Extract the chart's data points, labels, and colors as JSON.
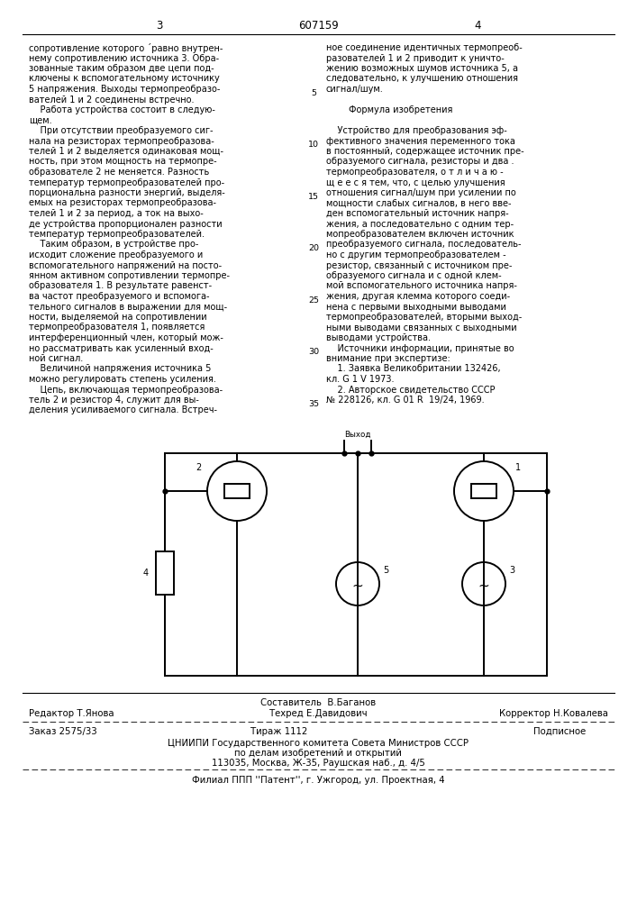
{
  "page_numbers_left": "3",
  "page_numbers_center": "607159",
  "page_numbers_right": "4",
  "left_col_text": [
    "сопротивление которого ´равно внутрен-",
    "нему сопротивлению источника 3. Обра-",
    "зованные таким образом две цепи под-",
    "ключены к вспомогательному источнику",
    "5 напряжения. Выходы термопреобразо-",
    "вателей 1 и 2 соединены встречно.",
    "    Работа устройства состоит в следую-",
    "щем.",
    "    При отсутствии преобразуемого сиг-",
    "нала на резисторах термопреобразова-",
    "телей 1 и 2 выделяется одинаковая мощ-",
    "ность, при этом мощность на термопре-",
    "образователе 2 не меняется. Разность",
    "температур термопреобразователей про-",
    "порциональна разности энергий, выделя-",
    "емых на резисторах термопреобразова-",
    "телей 1 и 2 за период, а ток на выхо-",
    "де устройства пропорционален разности",
    "температур термопреобразователей.",
    "    Таким образом, в устройстве про-",
    "исходит сложение преобразуемого и",
    "вспомогательного напряжений на посто-",
    "янном активном сопротивлении термопре-",
    "образователя 1. В результате равенст-",
    "ва частот преобразуемого и вспомога-",
    "тельного сигналов в выражении для мощ-",
    "ности, выделяемой на сопротивлении",
    "термопреобразователя 1, появляется",
    "интерференционный член, который мож-",
    "но рассматривать как усиленный вход-",
    "ной сигнал.",
    "    Величиной напряжения источника 5",
    "можно регулировать степень усиления.",
    "    Цепь, включающая термопреобразова-",
    "тель 2 и резистор 4, служит для вы-",
    "деления усиливаемого сигнала. Встреч-"
  ],
  "right_col_text": [
    "ное соединение идентичных термопреоб-",
    "разователей 1 и 2 приводит к уничто-",
    "жению возможных шумов источника 5, а",
    "следовательно, к улучшению отношения",
    "сигнал/шум.",
    "",
    "        Формула изобретения",
    "",
    "    Устройство для преобразования эф-",
    "фективного значения переменного тока",
    "в постоянный, содержащее источник пре-",
    "образуемого сигнала, резисторы и два .",
    "термопреобразователя, о т л и ч а ю -",
    "щ е е с я тем, что, с целью улучшения",
    "отношения сигнал/шум при усилении по",
    "мощности слабых сигналов, в него вве-",
    "ден вспомогательный источник напря-",
    "жения, а последовательно с одним тер-",
    "мопреобразователем включен источник",
    "преобразуемого сигнала, последователь-",
    "но с другим термопреобразователем -",
    "резистор, связанный с источником пре-",
    "образуемого сигнала и с одной клем-",
    "мой вспомогательного источника напря-",
    "жения, другая клемма которого соеди-",
    "нена с первыми выходными выводами",
    "термопреобразователей, вторыми выход-",
    "ными выводами связанных с выходными",
    "выводами устройства.",
    "    Источники информации, принятые во",
    "внимание при экспертизе:",
    "    1. Заявка Великобритании 132426,",
    "кл. G 1 V 1973.",
    "    2. Авторское свидетельство СССР",
    "№ 228126, кл. G 01 R  19/24, 1969."
  ],
  "line_num_rows": [
    5,
    10,
    15,
    20,
    25,
    30,
    35
  ],
  "footer_sestavitel": "Составитель  В.Баганов",
  "footer_redaktor": "Редактор Т.Янова",
  "footer_tehred": "Техред Е.Давидович",
  "footer_korrektor": "Корректор Н.Ковалева",
  "footer_zakaz": "Заказ 2575/33",
  "footer_tirazh": "Тираж 1112",
  "footer_podpisnoe": "Подписное",
  "footer_cniipи": "ЦНИИПИ Государственного комитета Совета Министров СССР",
  "footer_dela": "по делам изобретений и открытий",
  "footer_addr": "113035, Москва, Ж-35, Раушская наб., д. 4/5",
  "footer_filial": "Филиал ППП ''Патент'', г. Ужгород, ул. Проектная, 4",
  "bg_color": "#ffffff"
}
